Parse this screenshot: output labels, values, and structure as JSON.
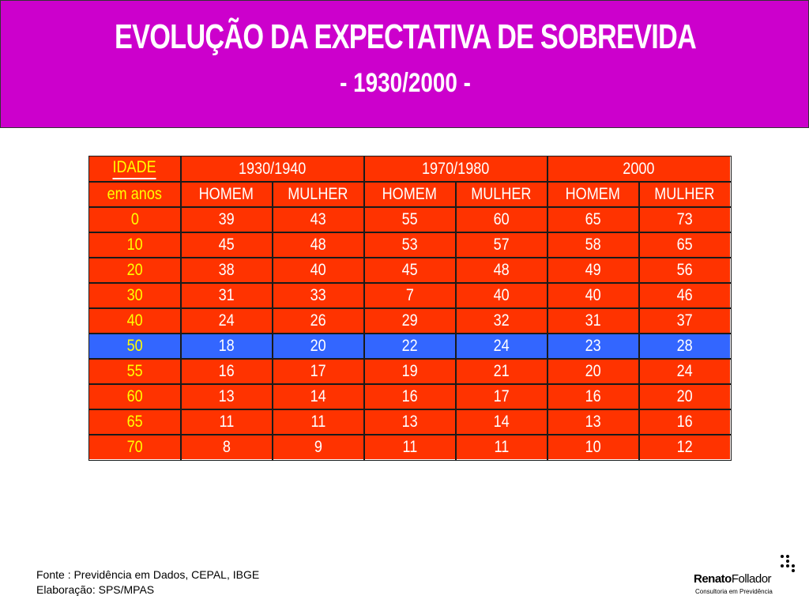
{
  "header": {
    "title": "EVOLUÇÃO DA EXPECTATIVA DE SOBREVIDA",
    "subtitle": "- 1930/2000 -"
  },
  "colors": {
    "header_background": "#cc00cc",
    "cell_background": "#ff3300",
    "highlight_row_background": "#3366ff",
    "age_text": "#ffff00",
    "value_text": "#ffffff"
  },
  "table": {
    "corner_label_1": "IDADE",
    "corner_label_2": "em anos",
    "periods": [
      "1930/1940",
      "1970/1980",
      "2000"
    ],
    "sexes": [
      "HOMEM",
      "MULHER",
      "HOMEM",
      "MULHER",
      "HOMEM",
      "MULHER"
    ],
    "highlighted_age": "50",
    "rows": [
      {
        "age": "0",
        "values": [
          "39",
          "43",
          "55",
          "60",
          "65",
          "73"
        ]
      },
      {
        "age": "10",
        "values": [
          "45",
          "48",
          "53",
          "57",
          "58",
          "65"
        ]
      },
      {
        "age": "20",
        "values": [
          "38",
          "40",
          "45",
          "48",
          "49",
          "56"
        ]
      },
      {
        "age": "30",
        "values": [
          "31",
          "33",
          "7",
          "40",
          "40",
          "46"
        ]
      },
      {
        "age": "40",
        "values": [
          "24",
          "26",
          "29",
          "32",
          "31",
          "37"
        ]
      },
      {
        "age": "50",
        "values": [
          "18",
          "20",
          "22",
          "24",
          "23",
          "28"
        ]
      },
      {
        "age": "55",
        "values": [
          "16",
          "17",
          "19",
          "21",
          "20",
          "24"
        ]
      },
      {
        "age": "60",
        "values": [
          "13",
          "14",
          "16",
          "17",
          "16",
          "20"
        ]
      },
      {
        "age": "65",
        "values": [
          "11",
          "11",
          "13",
          "14",
          "13",
          "16"
        ]
      },
      {
        "age": "70",
        "values": [
          "8",
          "9",
          "11",
          "11",
          "10",
          "12"
        ]
      }
    ]
  },
  "footer": {
    "source": "Fonte : Previdência em Dados, CEPAL, IBGE",
    "elaboration": "Elaboração: SPS/MPAS"
  },
  "logo": {
    "name_part1": "Renato",
    "name_part2": "Follador",
    "tagline": "Consultoria em Previdência"
  }
}
